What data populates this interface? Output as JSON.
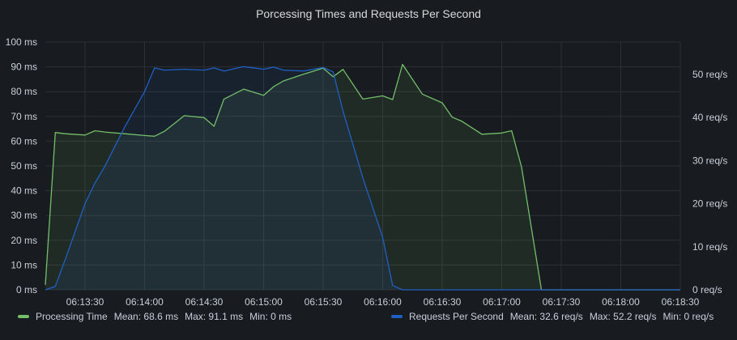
{
  "panel": {
    "title": "Porcessing Times and Requests Per Second"
  },
  "colors": {
    "background": "#181b1f",
    "grid": "#2c3035",
    "processing": "#73bf69",
    "requests": "#1f60c4"
  },
  "chart_data": {
    "type": "line",
    "title": "Porcessing Times and Requests Per Second",
    "x_ticks": [
      "06:13:30",
      "06:14:00",
      "06:14:30",
      "06:15:00",
      "06:15:30",
      "06:16:00",
      "06:16:30",
      "06:17:00",
      "06:17:30",
      "06:18:00",
      "06:18:30"
    ],
    "x": [
      "06:13:10",
      "06:13:15",
      "06:13:20",
      "06:13:30",
      "06:13:35",
      "06:13:40",
      "06:13:50",
      "06:14:00",
      "06:14:05",
      "06:14:10",
      "06:14:20",
      "06:14:30",
      "06:14:35",
      "06:14:40",
      "06:14:50",
      "06:15:00",
      "06:15:05",
      "06:15:10",
      "06:15:20",
      "06:15:30",
      "06:15:35",
      "06:15:40",
      "06:15:50",
      "06:16:00",
      "06:16:05",
      "06:16:10",
      "06:16:20",
      "06:16:30",
      "06:16:35",
      "06:16:40",
      "06:16:50",
      "06:17:00",
      "06:17:05",
      "06:17:10",
      "06:17:20",
      "06:17:30",
      "06:17:35",
      "06:17:40",
      "06:17:50",
      "06:18:00",
      "06:18:05",
      "06:18:10",
      "06:18:20",
      "06:18:30"
    ],
    "y_left": {
      "ticks": [
        "0 ms",
        "10 ms",
        "20 ms",
        "30 ms",
        "40 ms",
        "50 ms",
        "60 ms",
        "70 ms",
        "80 ms",
        "90 ms",
        "100 ms"
      ],
      "range": [
        0,
        100
      ],
      "unit": "ms"
    },
    "y_right": {
      "ticks": [
        "0 req/s",
        "10 req/s",
        "20 req/s",
        "30 req/s",
        "40 req/s",
        "50 req/s"
      ],
      "range": [
        0,
        57.5
      ],
      "unit": "req/s"
    },
    "grid": true,
    "legend_position": "bottom",
    "series": [
      {
        "name": "Processing Time",
        "axis": "left",
        "color": "#73bf69",
        "values": [
          2,
          63.5,
          63,
          62.5,
          64.2,
          63.7,
          63,
          62.3,
          62,
          64,
          70.3,
          69.5,
          66,
          77,
          81,
          78.5,
          82,
          84.3,
          87,
          89.5,
          86,
          89,
          77,
          78.3,
          76.8,
          91,
          79,
          75.5,
          69.7,
          68,
          62.8,
          63.3,
          64.2,
          49.5,
          0,
          0,
          0,
          0,
          0,
          0,
          0,
          0,
          0,
          0
        ],
        "stats": {
          "mean": "Mean: 68.6 ms",
          "max": "Max: 91.1 ms",
          "min": "Min: 0 ms"
        }
      },
      {
        "name": "Requests Per Second",
        "axis": "right",
        "color": "#1f60c4",
        "values": [
          0,
          0.8,
          7,
          20,
          24.8,
          28.7,
          37.8,
          46,
          51.5,
          51,
          51.2,
          51,
          51.5,
          50.8,
          51.8,
          51.2,
          51.7,
          51,
          50.8,
          51.6,
          50.6,
          41.5,
          26,
          12.2,
          1,
          0,
          0,
          0,
          0,
          0,
          0,
          0,
          0,
          0,
          0,
          0,
          0,
          0,
          0,
          0,
          0,
          0,
          0,
          0
        ],
        "stats": {
          "mean": "Mean: 32.6 req/s",
          "max": "Max: 52.2 req/s",
          "min": "Min: 0 req/s"
        }
      }
    ]
  }
}
